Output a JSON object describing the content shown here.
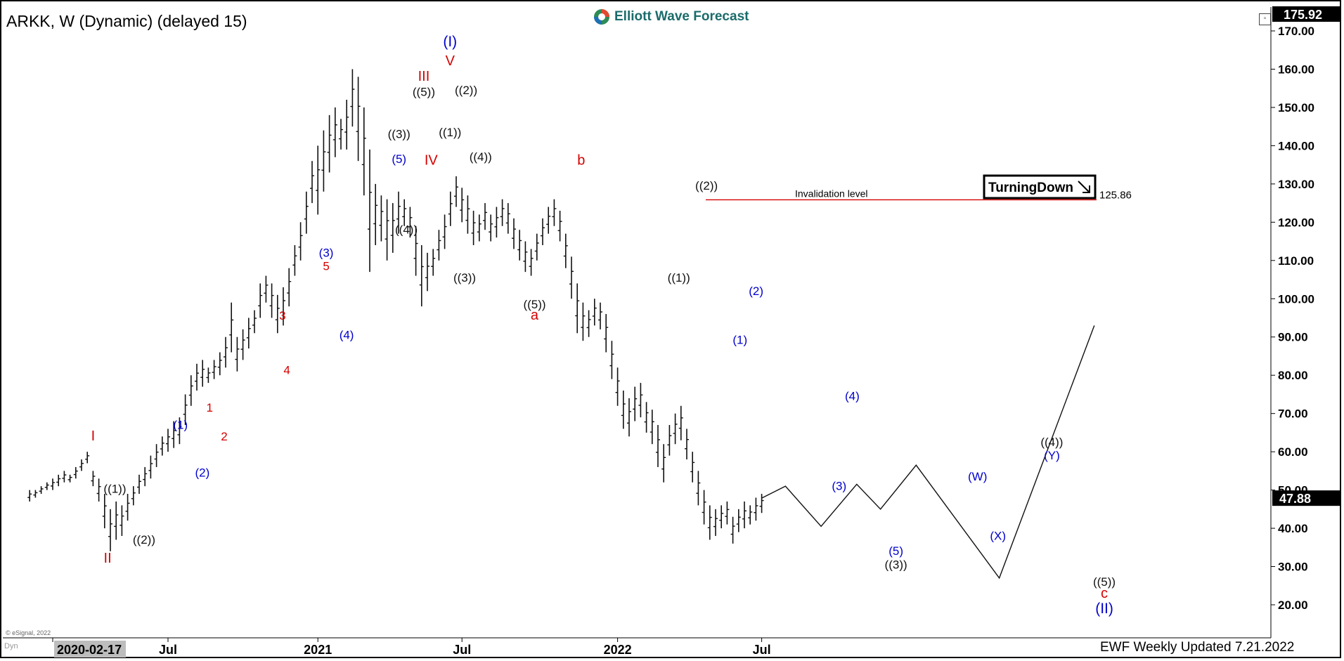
{
  "header": {
    "symbol": "ARKK, W (Dynamic) (delayed 15)",
    "brand": "Elliott Wave Forecast",
    "top_price": "175.92",
    "last_price": "47.88"
  },
  "footer": {
    "updated": "EWF Weekly Updated 7.21.2022",
    "copyright": "© eSignal, 2022",
    "dyn": "Dyn"
  },
  "colors": {
    "red": "#d40000",
    "blue": "#0000cc",
    "black": "#111111",
    "invalid": "#d40000"
  },
  "chart_data": {
    "type": "bar",
    "subtype": "ohlc",
    "ylim": [
      15,
      177
    ],
    "ticks_y": [
      20,
      30,
      40,
      50,
      60,
      70,
      80,
      90,
      100,
      110,
      120,
      130,
      140,
      150,
      160,
      170
    ],
    "ticks_y_labels": [
      "20.00",
      "30.00",
      "40.00",
      "50.00",
      "60.00",
      "70.00",
      "80.00",
      "90.00",
      "100.00",
      "110.00",
      "120.00",
      "130.00",
      "140.00",
      "150.00",
      "160.00",
      "170.00"
    ],
    "x_labels": [
      {
        "label": "2020-02-17",
        "week": 0,
        "highlight": true
      },
      {
        "label": "Jul",
        "week": 20
      },
      {
        "label": "2021",
        "week": 46
      },
      {
        "label": "Jul",
        "week": 71
      },
      {
        "label": "2022",
        "week": 98
      },
      {
        "label": "Jul",
        "week": 123
      }
    ],
    "price_ticks": [
      {
        "w": -4,
        "h": 50,
        "l": 47
      },
      {
        "w": -3,
        "h": 50,
        "l": 48
      },
      {
        "w": -2,
        "h": 51,
        "l": 49
      },
      {
        "w": -1,
        "h": 52,
        "l": 50
      },
      {
        "w": 0,
        "h": 53,
        "l": 50
      },
      {
        "w": 1,
        "h": 54,
        "l": 51
      },
      {
        "w": 2,
        "h": 55,
        "l": 52
      },
      {
        "w": 3,
        "h": 54,
        "l": 52
      },
      {
        "w": 4,
        "h": 56,
        "l": 53
      },
      {
        "w": 5,
        "h": 58,
        "l": 55
      },
      {
        "w": 6,
        "h": 60,
        "l": 57
      },
      {
        "w": 7,
        "h": 55,
        "l": 51
      },
      {
        "w": 8,
        "h": 53,
        "l": 47
      },
      {
        "w": 9,
        "h": 49,
        "l": 40
      },
      {
        "w": 10,
        "h": 45,
        "l": 34
      },
      {
        "w": 11,
        "h": 47,
        "l": 37
      },
      {
        "w": 12,
        "h": 46,
        "l": 38
      },
      {
        "w": 13,
        "h": 49,
        "l": 42
      },
      {
        "w": 14,
        "h": 51,
        "l": 46
      },
      {
        "w": 15,
        "h": 54,
        "l": 49
      },
      {
        "w": 16,
        "h": 56,
        "l": 51
      },
      {
        "w": 17,
        "h": 59,
        "l": 53
      },
      {
        "w": 18,
        "h": 62,
        "l": 56
      },
      {
        "w": 19,
        "h": 64,
        "l": 59
      },
      {
        "w": 20,
        "h": 66,
        "l": 60
      },
      {
        "w": 21,
        "h": 68,
        "l": 61
      },
      {
        "w": 22,
        "h": 69,
        "l": 62
      },
      {
        "w": 23,
        "h": 75,
        "l": 67
      },
      {
        "w": 24,
        "h": 80,
        "l": 72
      },
      {
        "w": 25,
        "h": 83,
        "l": 76
      },
      {
        "w": 26,
        "h": 84,
        "l": 77
      },
      {
        "w": 27,
        "h": 82,
        "l": 78
      },
      {
        "w": 28,
        "h": 84,
        "l": 79
      },
      {
        "w": 29,
        "h": 86,
        "l": 80
      },
      {
        "w": 30,
        "h": 90,
        "l": 82
      },
      {
        "w": 31,
        "h": 99,
        "l": 86
      },
      {
        "w": 32,
        "h": 90,
        "l": 81
      },
      {
        "w": 33,
        "h": 92,
        "l": 84
      },
      {
        "w": 34,
        "h": 95,
        "l": 87
      },
      {
        "w": 35,
        "h": 97,
        "l": 91
      },
      {
        "w": 36,
        "h": 104,
        "l": 95
      },
      {
        "w": 37,
        "h": 106,
        "l": 99
      },
      {
        "w": 38,
        "h": 104,
        "l": 95
      },
      {
        "w": 39,
        "h": 101,
        "l": 91
      },
      {
        "w": 40,
        "h": 103,
        "l": 93
      },
      {
        "w": 41,
        "h": 108,
        "l": 98
      },
      {
        "w": 42,
        "h": 114,
        "l": 106
      },
      {
        "w": 43,
        "h": 120,
        "l": 110
      },
      {
        "w": 44,
        "h": 128,
        "l": 117
      },
      {
        "w": 45,
        "h": 136,
        "l": 125
      },
      {
        "w": 46,
        "h": 140,
        "l": 122
      },
      {
        "w": 47,
        "h": 144,
        "l": 128
      },
      {
        "w": 48,
        "h": 148,
        "l": 133
      },
      {
        "w": 49,
        "h": 150,
        "l": 137
      },
      {
        "w": 50,
        "h": 147,
        "l": 139
      },
      {
        "w": 51,
        "h": 152,
        "l": 139
      },
      {
        "w": 52,
        "h": 160,
        "l": 145
      },
      {
        "w": 53,
        "h": 158,
        "l": 136
      },
      {
        "w": 54,
        "h": 150,
        "l": 127
      },
      {
        "w": 55,
        "h": 139,
        "l": 107
      },
      {
        "w": 56,
        "h": 130,
        "l": 114
      },
      {
        "w": 57,
        "h": 127,
        "l": 115
      },
      {
        "w": 58,
        "h": 126,
        "l": 110
      },
      {
        "w": 59,
        "h": 125,
        "l": 112
      },
      {
        "w": 60,
        "h": 128,
        "l": 117
      },
      {
        "w": 61,
        "h": 126,
        "l": 119
      },
      {
        "w": 62,
        "h": 124,
        "l": 116
      },
      {
        "w": 63,
        "h": 119,
        "l": 106
      },
      {
        "w": 64,
        "h": 114,
        "l": 98
      },
      {
        "w": 65,
        "h": 112,
        "l": 102
      },
      {
        "w": 66,
        "h": 113,
        "l": 106
      },
      {
        "w": 67,
        "h": 118,
        "l": 110
      },
      {
        "w": 68,
        "h": 122,
        "l": 113
      },
      {
        "w": 69,
        "h": 128,
        "l": 119
      },
      {
        "w": 70,
        "h": 132,
        "l": 124
      },
      {
        "w": 71,
        "h": 129,
        "l": 120
      },
      {
        "w": 72,
        "h": 127,
        "l": 117
      },
      {
        "w": 73,
        "h": 123,
        "l": 114
      },
      {
        "w": 74,
        "h": 122,
        "l": 115
      },
      {
        "w": 75,
        "h": 125,
        "l": 118
      },
      {
        "w": 76,
        "h": 122,
        "l": 115
      },
      {
        "w": 77,
        "h": 124,
        "l": 116
      },
      {
        "w": 78,
        "h": 126,
        "l": 119
      },
      {
        "w": 79,
        "h": 125,
        "l": 117
      },
      {
        "w": 80,
        "h": 121,
        "l": 113
      },
      {
        "w": 81,
        "h": 118,
        "l": 110
      },
      {
        "w": 82,
        "h": 115,
        "l": 107
      },
      {
        "w": 83,
        "h": 113,
        "l": 106
      },
      {
        "w": 84,
        "h": 117,
        "l": 110
      },
      {
        "w": 85,
        "h": 121,
        "l": 114
      },
      {
        "w": 86,
        "h": 124,
        "l": 117
      },
      {
        "w": 87,
        "h": 126,
        "l": 119
      },
      {
        "w": 88,
        "h": 123,
        "l": 115
      },
      {
        "w": 89,
        "h": 117,
        "l": 108
      },
      {
        "w": 90,
        "h": 111,
        "l": 100
      },
      {
        "w": 91,
        "h": 104,
        "l": 91
      },
      {
        "w": 92,
        "h": 99,
        "l": 89
      },
      {
        "w": 93,
        "h": 97,
        "l": 90
      },
      {
        "w": 94,
        "h": 100,
        "l": 93
      },
      {
        "w": 95,
        "h": 99,
        "l": 92
      },
      {
        "w": 96,
        "h": 96,
        "l": 86
      },
      {
        "w": 97,
        "h": 89,
        "l": 79
      },
      {
        "w": 98,
        "h": 82,
        "l": 72
      },
      {
        "w": 99,
        "h": 76,
        "l": 66
      },
      {
        "w": 100,
        "h": 74,
        "l": 64
      },
      {
        "w": 101,
        "h": 77,
        "l": 68
      },
      {
        "w": 102,
        "h": 78,
        "l": 69
      },
      {
        "w": 103,
        "h": 73,
        "l": 65
      },
      {
        "w": 104,
        "h": 71,
        "l": 62
      },
      {
        "w": 105,
        "h": 67,
        "l": 56
      },
      {
        "w": 106,
        "h": 62,
        "l": 52
      },
      {
        "w": 107,
        "h": 67,
        "l": 59
      },
      {
        "w": 108,
        "h": 70,
        "l": 62
      },
      {
        "w": 109,
        "h": 72,
        "l": 63
      },
      {
        "w": 110,
        "h": 66,
        "l": 58
      },
      {
        "w": 111,
        "h": 60,
        "l": 52
      },
      {
        "w": 112,
        "h": 55,
        "l": 46
      },
      {
        "w": 113,
        "h": 50,
        "l": 41
      },
      {
        "w": 114,
        "h": 46,
        "l": 37
      },
      {
        "w": 115,
        "h": 45,
        "l": 38
      },
      {
        "w": 116,
        "h": 46,
        "l": 40
      },
      {
        "w": 117,
        "h": 47,
        "l": 41
      },
      {
        "w": 118,
        "h": 43,
        "l": 36
      },
      {
        "w": 119,
        "h": 45,
        "l": 39
      },
      {
        "w": 120,
        "h": 47,
        "l": 40
      },
      {
        "w": 121,
        "h": 46,
        "l": 41
      },
      {
        "w": 122,
        "h": 48,
        "l": 42
      },
      {
        "w": 123,
        "h": 49,
        "l": 44
      }
    ],
    "projection": [
      {
        "w": 123,
        "v": 47.88
      },
      {
        "w": 125,
        "v": 51
      },
      {
        "w": 128,
        "v": 40.5
      },
      {
        "w": 131,
        "v": 51.5
      },
      {
        "w": 133,
        "v": 45
      },
      {
        "w": 136,
        "v": 56.5
      },
      {
        "w": 143,
        "v": 27
      },
      {
        "w": 151,
        "v": 93
      }
    ],
    "invalidation": {
      "label": "Invalidation level",
      "value": 125.86,
      "value_label": "125.86",
      "from_week": 89,
      "to_week": 141
    },
    "badge": "TurningDown",
    "wave_labels": [
      {
        "text": "I",
        "w": 6,
        "v": 63,
        "color": "red",
        "size": 20
      },
      {
        "text": "II",
        "w": 7,
        "v": 31,
        "color": "red",
        "size": 20
      },
      {
        "text": "((1))",
        "w": 7.5,
        "v": 49.3,
        "color": "black",
        "size": 17
      },
      {
        "text": "((2))",
        "w": 9.5,
        "v": 36,
        "color": "black",
        "size": 17
      },
      {
        "text": "(1)",
        "w": 12,
        "v": 66,
        "color": "blue",
        "size": 17
      },
      {
        "text": "(2)",
        "w": 13.5,
        "v": 53.5,
        "color": "blue",
        "size": 17
      },
      {
        "text": "1",
        "w": 14,
        "v": 70.5,
        "color": "red",
        "size": 17
      },
      {
        "text": "2",
        "w": 15,
        "v": 63,
        "color": "red",
        "size": 17
      },
      {
        "text": "3",
        "w": 19,
        "v": 94.5,
        "color": "red",
        "size": 17
      },
      {
        "text": "4",
        "w": 19.3,
        "v": 80.3,
        "color": "red",
        "size": 17
      },
      {
        "text": "(3)",
        "w": 22,
        "v": 111,
        "color": "blue",
        "size": 17
      },
      {
        "text": "5",
        "w": 22,
        "v": 107.5,
        "color": "red",
        "size": 17
      },
      {
        "text": "(4)",
        "w": 23.4,
        "v": 89.5,
        "color": "blue",
        "size": 17
      },
      {
        "text": "(5)",
        "w": 27,
        "v": 135.5,
        "color": "blue",
        "size": 17
      },
      {
        "text": "((3))",
        "w": 27,
        "v": 142,
        "color": "black",
        "size": 17
      },
      {
        "text": "((4))",
        "w": 27.5,
        "v": 117,
        "color": "black",
        "size": 17
      },
      {
        "text": "((5))",
        "w": 28.7,
        "v": 153,
        "color": "black",
        "size": 17
      },
      {
        "text": "III",
        "w": 28.7,
        "v": 157,
        "color": "red",
        "size": 20
      },
      {
        "text": "IV",
        "w": 29.2,
        "v": 135,
        "color": "red",
        "size": 20
      },
      {
        "text": "(I)",
        "w": 30.5,
        "v": 166,
        "color": "blue",
        "size": 21
      },
      {
        "text": "V",
        "w": 30.5,
        "v": 161,
        "color": "red",
        "size": 20
      },
      {
        "text": "((2))",
        "w": 31.6,
        "v": 153.5,
        "color": "black",
        "size": 17
      },
      {
        "text": "((1))",
        "w": 30.5,
        "v": 142.5,
        "color": "black",
        "size": 17
      },
      {
        "text": "((4))",
        "w": 32.6,
        "v": 136,
        "color": "black",
        "size": 17
      },
      {
        "text": "((3))",
        "w": 31.5,
        "v": 104.5,
        "color": "black",
        "size": 17
      },
      {
        "text": "((5))",
        "w": 36.3,
        "v": 97.5,
        "color": "black",
        "size": 17
      },
      {
        "text": "a",
        "w": 36.3,
        "v": 94.5,
        "color": "red",
        "size": 20
      },
      {
        "text": "b",
        "w": 39.5,
        "v": 135,
        "color": "red",
        "size": 20
      },
      {
        "text": "((2))",
        "w": 48.1,
        "v": 128.5,
        "color": "black",
        "size": 17
      },
      {
        "text": "((1))",
        "w": 46.2,
        "v": 104.5,
        "color": "black",
        "size": 17
      },
      {
        "text": "(2)",
        "w": 51.5,
        "v": 101,
        "color": "blue",
        "size": 17
      },
      {
        "text": "(1)",
        "w": 50.4,
        "v": 88.2,
        "color": "blue",
        "size": 17
      },
      {
        "text": "(4)",
        "w": 58.1,
        "v": 73.5,
        "color": "blue",
        "size": 17
      },
      {
        "text": "(3)",
        "w": 57.2,
        "v": 50,
        "color": "blue",
        "size": 17
      },
      {
        "text": "(5)",
        "w": 61.1,
        "v": 33,
        "color": "blue",
        "size": 17
      },
      {
        "text": "((3))",
        "w": 61.1,
        "v": 29.5,
        "color": "black",
        "size": 17
      },
      {
        "text": "(W)",
        "w": 66.7,
        "v": 52.5,
        "color": "blue",
        "size": 17
      },
      {
        "text": "(X)",
        "w": 68.1,
        "v": 37,
        "color": "blue",
        "size": 17
      },
      {
        "text": "((4))",
        "w": 71.8,
        "v": 61.5,
        "color": "black",
        "size": 17
      },
      {
        "text": "(Y)",
        "w": 71.8,
        "v": 58,
        "color": "blue",
        "size": 17
      },
      {
        "text": "((5))",
        "w": 75.4,
        "v": 25,
        "color": "black",
        "size": 17
      },
      {
        "text": "c",
        "w": 75.4,
        "v": 21.8,
        "color": "red",
        "size": 20
      },
      {
        "text": "(II)",
        "w": 75.4,
        "v": 17.8,
        "color": "blue",
        "size": 21
      }
    ]
  }
}
